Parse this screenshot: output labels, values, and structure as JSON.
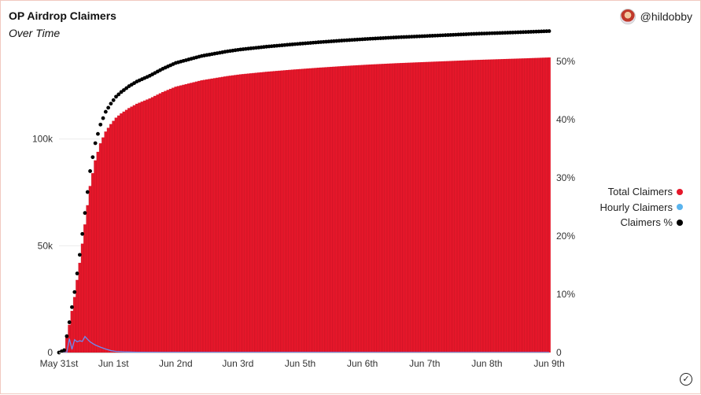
{
  "header": {
    "title": "OP Airdrop Claimers",
    "subtitle": "Over Time",
    "author": "@hildobby"
  },
  "legend": {
    "items": [
      {
        "label": "Total Claimers",
        "color": "#e5172a"
      },
      {
        "label": "Hourly Claimers",
        "color": "#5ab4ee"
      },
      {
        "label": "Claimers %",
        "color": "#000000"
      }
    ]
  },
  "chart_data": {
    "type": "bar",
    "xlabel": "",
    "ylabel": "",
    "ylim": [
      0,
      150000
    ],
    "y2lim": [
      0,
      0.55
    ],
    "yticks": [
      0,
      50000,
      100000
    ],
    "ytick_labels": [
      "0",
      "50k",
      "100k"
    ],
    "y2ticks": [
      0,
      0.1,
      0.2,
      0.3,
      0.4,
      0.5
    ],
    "y2tick_labels": [
      "0",
      "10%",
      "20%",
      "30%",
      "40%",
      "50%"
    ],
    "xticks": [
      0,
      21,
      45,
      69,
      93,
      117,
      141,
      165,
      189
    ],
    "xtick_labels": [
      "May 31st",
      "Jun 1st",
      "Jun 2nd",
      "Jun 3rd",
      "Jun 5th",
      "Jun 6th",
      "Jun 7th",
      "Jun 8th",
      "Jun 9th"
    ],
    "xlim": [
      0,
      189
    ],
    "grid": "horizontal",
    "legend_position": "right",
    "anchors": {
      "hour": [
        0,
        2,
        4,
        6,
        8,
        10,
        12,
        14,
        16,
        18,
        20,
        22,
        24,
        27,
        30,
        35,
        40,
        45,
        50,
        55,
        60,
        65,
        70,
        80,
        90,
        100,
        110,
        120,
        130,
        140,
        150,
        160,
        170,
        180,
        189
      ],
      "total_claimers": [
        0,
        1000,
        13000,
        26000,
        42000,
        60000,
        78000,
        90000,
        98000,
        103500,
        107000,
        110000,
        112000,
        114500,
        116500,
        119000,
        122000,
        124500,
        126000,
        127500,
        128500,
        129500,
        130300,
        131500,
        132500,
        133400,
        134200,
        134900,
        135500,
        136000,
        136500,
        137000,
        137400,
        137800,
        138200
      ]
    },
    "series": [
      {
        "name": "Total Claimers",
        "color": "#e5172a",
        "kind": "bar",
        "axis": "left"
      },
      {
        "name": "Hourly Claimers",
        "color": "#5ab4ee",
        "kind": "line",
        "axis": "left",
        "points": [
          [
            0,
            0
          ],
          [
            3,
            0
          ],
          [
            4,
            6500
          ],
          [
            5,
            1500
          ],
          [
            6,
            6000
          ],
          [
            7,
            5000
          ],
          [
            8,
            5500
          ],
          [
            9,
            5200
          ],
          [
            10,
            7500
          ],
          [
            11,
            6200
          ],
          [
            12,
            5000
          ],
          [
            13,
            4200
          ],
          [
            14,
            3500
          ],
          [
            16,
            2500
          ],
          [
            18,
            1600
          ],
          [
            20,
            900
          ],
          [
            22,
            500
          ],
          [
            25,
            300
          ],
          [
            30,
            150
          ],
          [
            40,
            80
          ],
          [
            189,
            30
          ]
        ]
      },
      {
        "name": "Claimers %",
        "color": "#000000",
        "kind": "scatter",
        "axis": "right",
        "derived_from": "total_claimers",
        "max_ratio": 0.552
      }
    ]
  }
}
